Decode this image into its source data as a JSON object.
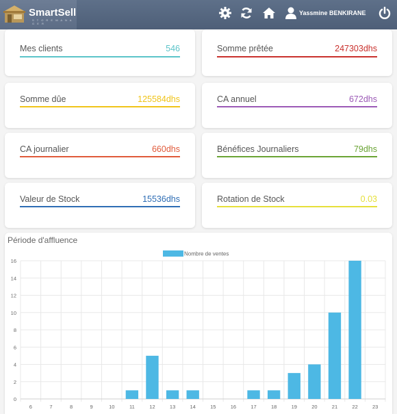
{
  "navbar": {
    "brand": "SmartSell",
    "brand_tagline": "S T O R E   M A N A G E R",
    "user_name": "Yassmine BENKIRANE",
    "icons": [
      "gear-icon",
      "refresh-icon",
      "home-icon",
      "user-icon",
      "power-icon"
    ]
  },
  "stats": [
    {
      "label": "Mes clients",
      "value": "546",
      "color": "#5bc4c9"
    },
    {
      "label": "Somme prêtée",
      "value": "247303dhs",
      "color": "#c9302c"
    },
    {
      "label": "Somme dûe",
      "value": "125584dhs",
      "color": "#f0c419"
    },
    {
      "label": "CA annuel",
      "value": "672dhs",
      "color": "#9b59b6"
    },
    {
      "label": "CA journalier",
      "value": "660dhs",
      "color": "#e05a3a"
    },
    {
      "label": "Bénéfices Journaliers",
      "value": "79dhs",
      "color": "#6aa334"
    },
    {
      "label": "Valeur de Stock",
      "value": "15536dhs",
      "color": "#2e6db4"
    },
    {
      "label": "Rotation de Stock",
      "value": "0.03",
      "color": "#e6e03a"
    }
  ],
  "chart": {
    "title": "Période d'affluence"
  },
  "chart_data": {
    "type": "bar",
    "categories": [
      "6",
      "7",
      "8",
      "9",
      "10",
      "11",
      "12",
      "13",
      "14",
      "15",
      "16",
      "17",
      "18",
      "19",
      "20",
      "21",
      "22",
      "23"
    ],
    "series": [
      {
        "name": "Nombre de ventes",
        "values": [
          0,
          0,
          0,
          0,
          0,
          1,
          5,
          1,
          1,
          0,
          0,
          1,
          1,
          3,
          4,
          10,
          16,
          0
        ],
        "color": "#4db8e4"
      }
    ],
    "ylim": [
      0,
      16
    ],
    "yticks": [
      0,
      2,
      4,
      6,
      8,
      10,
      12,
      14,
      16
    ],
    "legend": "top",
    "grid": true
  }
}
